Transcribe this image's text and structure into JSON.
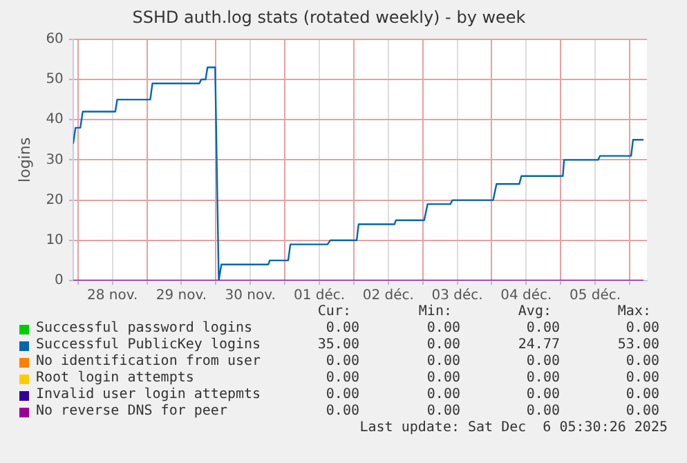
{
  "chart_data": {
    "type": "line",
    "title": "SSHD auth.log stats (rotated weekly) - by week",
    "ylabel": "logins",
    "xlim": [
      "2025-11-27T22:20",
      "2025-12-06T06:00"
    ],
    "ylim": [
      0,
      60
    ],
    "yticks": [
      0,
      10,
      20,
      30,
      40,
      50,
      60
    ],
    "xticks": [
      {
        "value": "2025-11-28T00:00",
        "label": null
      },
      {
        "value": "2025-11-28T12:00",
        "label": "28 nov."
      },
      {
        "value": "2025-11-29T00:00",
        "label": null
      },
      {
        "value": "2025-11-29T12:00",
        "label": "29 nov."
      },
      {
        "value": "2025-11-30T00:00",
        "label": null
      },
      {
        "value": "2025-11-30T12:00",
        "label": "30 nov."
      },
      {
        "value": "2025-12-01T00:00",
        "label": null
      },
      {
        "value": "2025-12-01T12:00",
        "label": "01 déc."
      },
      {
        "value": "2025-12-02T00:00",
        "label": null
      },
      {
        "value": "2025-12-02T12:00",
        "label": "02 déc."
      },
      {
        "value": "2025-12-03T00:00",
        "label": null
      },
      {
        "value": "2025-12-03T12:00",
        "label": "03 déc."
      },
      {
        "value": "2025-12-04T00:00",
        "label": null
      },
      {
        "value": "2025-12-04T12:00",
        "label": "04 déc."
      },
      {
        "value": "2025-12-05T00:00",
        "label": null
      },
      {
        "value": "2025-12-05T12:00",
        "label": "05 déc."
      },
      {
        "value": "2025-12-06T00:00",
        "label": null
      }
    ],
    "grid": true,
    "legend": "bottom",
    "marker": "none",
    "series": [
      {
        "name": "Successful password logins",
        "color": "#00cc00"
      },
      {
        "name": "Successful PublicKey logins",
        "color": "#0066b3",
        "x": [
          "2025-11-27T22:20",
          "2025-11-27T23:10",
          "2025-11-28T00:50",
          "2025-11-28T01:40",
          "2025-11-28T13:00",
          "2025-11-28T13:40",
          "2025-11-29T01:10",
          "2025-11-29T01:55",
          "2025-11-29T18:15",
          "2025-11-29T18:55",
          "2025-11-29T20:25",
          "2025-11-29T21:05",
          "2025-11-29T23:45",
          "2025-11-30T01:00",
          "2025-11-30T01:55",
          "2025-11-30T18:15",
          "2025-11-30T18:45",
          "2025-12-01T01:10",
          "2025-12-01T01:55",
          "2025-12-01T14:50",
          "2025-12-01T15:50",
          "2025-12-02T01:00",
          "2025-12-02T01:40",
          "2025-12-02T14:10",
          "2025-12-02T14:40",
          "2025-12-03T00:30",
          "2025-12-03T01:40",
          "2025-12-03T09:35",
          "2025-12-03T10:20",
          "2025-12-04T00:30",
          "2025-12-04T01:40",
          "2025-12-04T09:35",
          "2025-12-04T10:20",
          "2025-12-05T00:45",
          "2025-12-05T01:10",
          "2025-12-05T13:00",
          "2025-12-05T13:40",
          "2025-12-06T00:30",
          "2025-12-06T01:10",
          "2025-12-06T04:50"
        ],
        "values": [
          34,
          38,
          38,
          42,
          42,
          45,
          45,
          49,
          49,
          50,
          50,
          53,
          53,
          0,
          4,
          4,
          5,
          5,
          9,
          9,
          10,
          10,
          14,
          14,
          15,
          15,
          19,
          19,
          20,
          20,
          24,
          24,
          26,
          26,
          30,
          30,
          31,
          31,
          35,
          35
        ]
      },
      {
        "name": "No identification from user",
        "color": "#ff8000"
      },
      {
        "name": "Root login attempts",
        "color": "#ffcc00"
      },
      {
        "name": "Invalid user login attepmts",
        "color": "#330099"
      },
      {
        "name": "No reverse DNS for peer",
        "color": "#990099",
        "x": [
          "2025-11-27T22:20",
          "2025-12-06T04:50"
        ],
        "values": [
          0,
          0
        ]
      }
    ],
    "annotations": [
      "Cur:",
      "Min:",
      "Avg:",
      "Max:",
      "0.00",
      "0.00",
      "0.00",
      "0.00",
      "35.00",
      "0.00",
      "24.77",
      "53.00",
      "0.00",
      "0.00",
      "0.00",
      "0.00",
      "0.00",
      "0.00",
      "0.00",
      "0.00",
      "0.00",
      "0.00",
      "0.00",
      "0.00",
      "0.00",
      "0.00",
      "0.00",
      "0.00",
      "Last update: Sat Dec  6 05:30:26 2025"
    ]
  }
}
